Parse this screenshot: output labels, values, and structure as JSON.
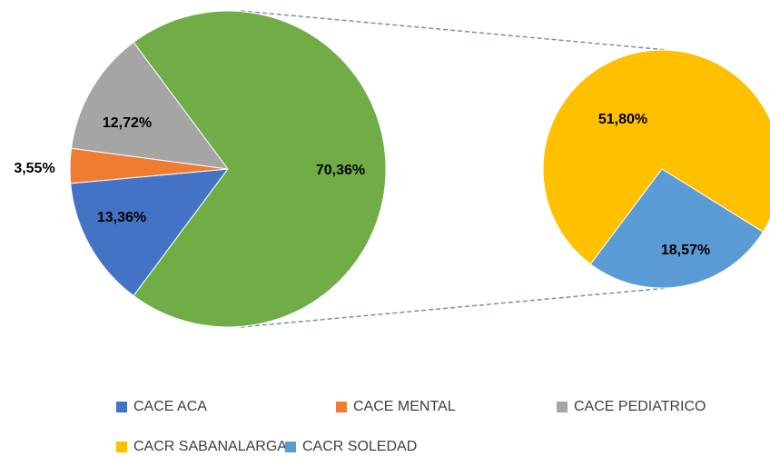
{
  "chart_data": {
    "type": "pie-of-pie",
    "categories": [
      "CACE ACA",
      "CACE MENTAL",
      "CACE PEDIATRICO",
      null
    ],
    "values": [
      13.36,
      3.55,
      12.72,
      70.36
    ],
    "value_labels": [
      "13,36%",
      "3,55%",
      "12,72%",
      "70,36%"
    ],
    "colors": [
      "#4472c4",
      "#ed7d31",
      "#a5a5a5",
      "#70ad47"
    ],
    "secondary": {
      "categories": [
        "CACR SABANALARGA",
        "CACR SOLEDAD"
      ],
      "values": [
        51.8,
        18.57
      ],
      "value_labels": [
        "51,80%",
        "18,57%"
      ],
      "colors": [
        "#ffc000",
        "#5b9bd5"
      ]
    }
  }
}
